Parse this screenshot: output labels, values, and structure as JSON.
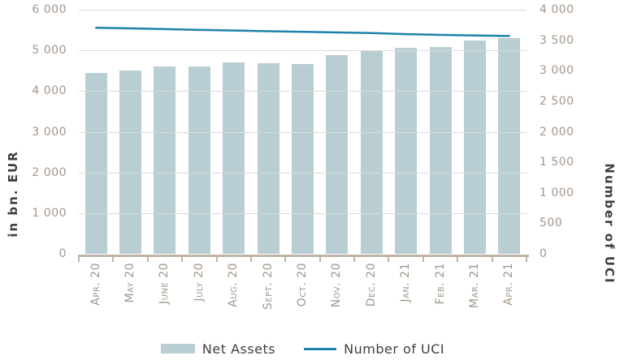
{
  "chart_data": {
    "type": "bar-line-combo",
    "title": "",
    "categories": [
      "Apr. 20",
      "May 20",
      "June 20",
      "July 20",
      "Aug. 20",
      "Sept. 20",
      "Oct. 20",
      "Nov. 20",
      "Dec. 20",
      "Jan. 21",
      "Feb. 21",
      "Mar. 21",
      "Apr. 21"
    ],
    "series": [
      {
        "name": "Net Assets",
        "type": "bar",
        "axis": "left",
        "values": [
          4440,
          4500,
          4600,
          4605,
          4700,
          4680,
          4660,
          4885,
          4980,
          5060,
          5085,
          5240,
          5300
        ]
      },
      {
        "name": "Number of UCI",
        "type": "line",
        "axis": "right",
        "values": [
          3705,
          3694,
          3682,
          3670,
          3659,
          3648,
          3638,
          3628,
          3618,
          3600,
          3588,
          3578,
          3570
        ]
      }
    ],
    "left_axis": {
      "title": "in bn. EUR",
      "min": 0,
      "max": 6000,
      "step": 1000,
      "tick_values": [
        0,
        1000,
        2000,
        3000,
        4000,
        5000,
        6000
      ],
      "tick_labels": [
        "0",
        "1 000",
        "2 000",
        "3 000",
        "4 000",
        "5 000",
        "6 000"
      ]
    },
    "right_axis": {
      "title": "Number of UCI",
      "min": 0,
      "max": 4000,
      "step": 500,
      "tick_values": [
        0,
        500,
        1000,
        1500,
        2000,
        2500,
        3000,
        3500,
        4000
      ],
      "tick_labels": [
        "0",
        "500",
        "1 000",
        "1 500",
        "2 000",
        "2 500",
        "3 000",
        "3 500",
        "4 000"
      ]
    },
    "grid": true,
    "legend_position": "bottom",
    "legend": [
      "Net Assets",
      "Number of UCI"
    ]
  },
  "colors": {
    "bar": "#b9ced3",
    "line": "#1f81aa",
    "grid": "#dadada",
    "axis_line": "#c0b4a8",
    "tick_text": "#a3968a",
    "title_text": "#3f3f3f",
    "background": "#ffffff"
  }
}
